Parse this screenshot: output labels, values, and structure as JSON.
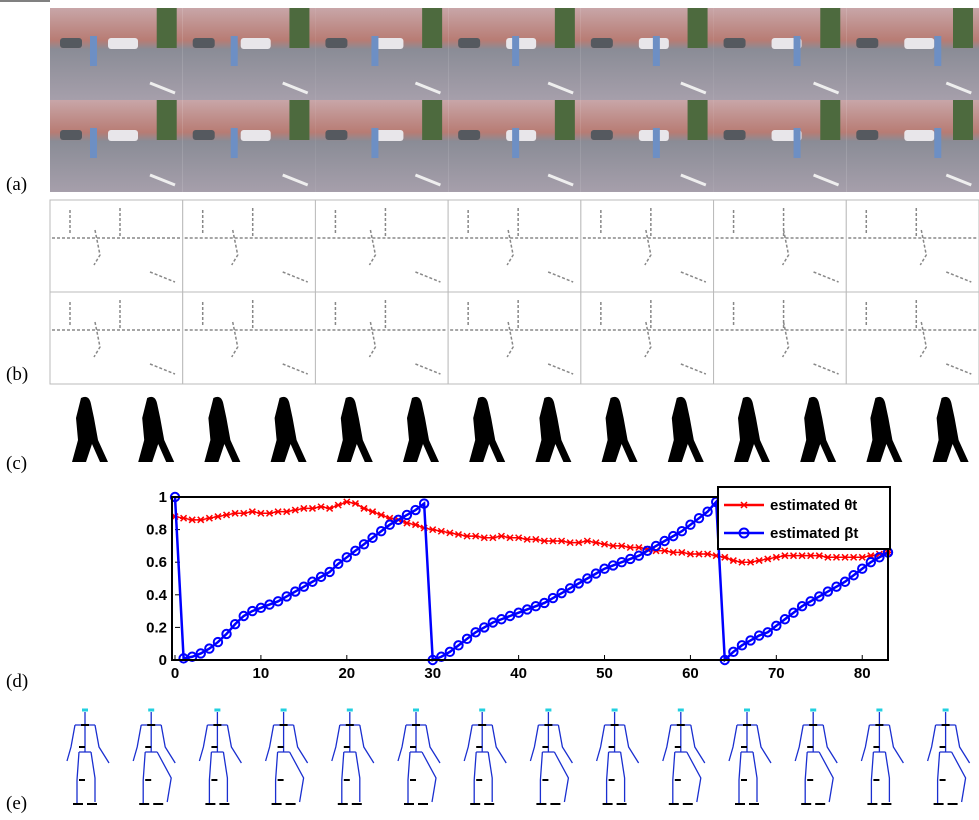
{
  "panel_labels": [
    "(a)",
    "(b)",
    "(c)",
    "(d)",
    "(e)"
  ],
  "chart_data": {
    "type": "line",
    "x": [
      0,
      1,
      2,
      3,
      4,
      5,
      6,
      7,
      8,
      9,
      10,
      11,
      12,
      13,
      14,
      15,
      16,
      17,
      18,
      19,
      20,
      21,
      22,
      23,
      24,
      25,
      26,
      27,
      28,
      29,
      30,
      31,
      32,
      33,
      34,
      35,
      36,
      37,
      38,
      39,
      40,
      41,
      42,
      43,
      44,
      45,
      46,
      47,
      48,
      49,
      50,
      51,
      52,
      53,
      54,
      55,
      56,
      57,
      58,
      59,
      60,
      61,
      62,
      63,
      64,
      65,
      66,
      67,
      68,
      69,
      70,
      71,
      72,
      73,
      74,
      75,
      76,
      77,
      78,
      79,
      80,
      81,
      82,
      83
    ],
    "series": [
      {
        "name": "estimated θt",
        "color": "#ff0000",
        "marker": "star",
        "values": [
          0.88,
          0.87,
          0.86,
          0.86,
          0.87,
          0.88,
          0.89,
          0.9,
          0.9,
          0.91,
          0.9,
          0.9,
          0.91,
          0.91,
          0.92,
          0.93,
          0.93,
          0.94,
          0.93,
          0.95,
          0.97,
          0.96,
          0.93,
          0.91,
          0.89,
          0.87,
          0.86,
          0.84,
          0.83,
          0.81,
          0.8,
          0.79,
          0.78,
          0.77,
          0.76,
          0.76,
          0.75,
          0.75,
          0.76,
          0.75,
          0.75,
          0.74,
          0.74,
          0.73,
          0.73,
          0.73,
          0.72,
          0.72,
          0.73,
          0.72,
          0.71,
          0.7,
          0.7,
          0.69,
          0.69,
          0.68,
          0.67,
          0.67,
          0.66,
          0.66,
          0.65,
          0.65,
          0.65,
          0.64,
          0.63,
          0.61,
          0.6,
          0.6,
          0.61,
          0.62,
          0.63,
          0.64,
          0.64,
          0.64,
          0.64,
          0.64,
          0.63,
          0.63,
          0.63,
          0.63,
          0.63,
          0.64,
          0.65,
          0.66
        ]
      },
      {
        "name": "estimated βt",
        "color": "#0000ff",
        "marker": "circle",
        "values": [
          1.0,
          0.01,
          0.02,
          0.04,
          0.07,
          0.11,
          0.16,
          0.22,
          0.27,
          0.3,
          0.32,
          0.34,
          0.36,
          0.39,
          0.42,
          0.45,
          0.48,
          0.51,
          0.54,
          0.59,
          0.63,
          0.67,
          0.71,
          0.75,
          0.79,
          0.83,
          0.86,
          0.89,
          0.92,
          0.96,
          0.0,
          0.02,
          0.05,
          0.09,
          0.13,
          0.17,
          0.2,
          0.23,
          0.25,
          0.27,
          0.29,
          0.31,
          0.33,
          0.35,
          0.38,
          0.41,
          0.44,
          0.47,
          0.5,
          0.53,
          0.56,
          0.58,
          0.6,
          0.62,
          0.64,
          0.67,
          0.7,
          0.73,
          0.76,
          0.79,
          0.83,
          0.87,
          0.91,
          0.97,
          0.0,
          0.05,
          0.09,
          0.12,
          0.15,
          0.17,
          0.21,
          0.25,
          0.29,
          0.33,
          0.36,
          0.39,
          0.42,
          0.45,
          0.48,
          0.52,
          0.56,
          0.6,
          0.63,
          0.66
        ]
      }
    ],
    "xlim": [
      0,
      83
    ],
    "xticks": [
      0,
      10,
      20,
      30,
      40,
      50,
      60,
      70,
      80
    ],
    "ylim": [
      0,
      1
    ],
    "yticks": [
      0,
      0.2,
      0.4,
      0.6,
      0.8,
      1
    ],
    "legend": "upper right"
  }
}
